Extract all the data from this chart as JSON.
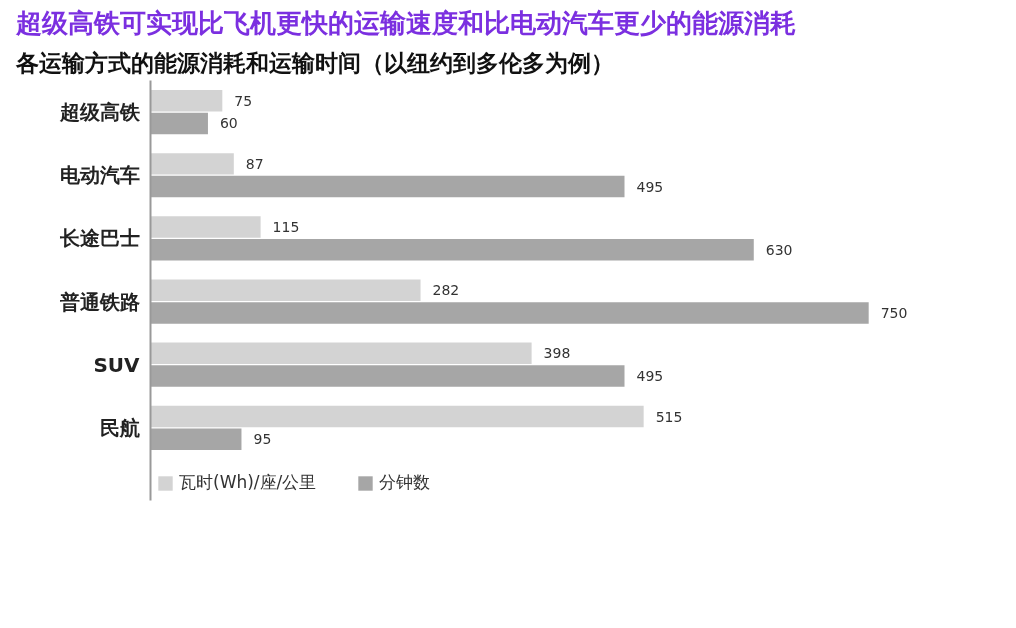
{
  "chart_data": {
    "type": "bar",
    "orientation": "horizontal",
    "title": "超级高铁可实现比飞机更快的运输速度和比电动汽车更少的能源消耗",
    "subtitle": "各运输方式的能源消耗和运输时间（以纽约到多伦多为例）",
    "categories": [
      "超级高铁",
      "电动汽车",
      "长途巴士",
      "普通铁路",
      "SUV",
      "民航"
    ],
    "series": [
      {
        "name": "瓦时(Wh)/座/公里",
        "color": "#d3d3d3",
        "values": [
          75,
          87,
          115,
          282,
          398,
          515
        ]
      },
      {
        "name": "分钟数",
        "color": "#a6a6a6",
        "values": [
          60,
          495,
          630,
          750,
          495,
          95
        ]
      }
    ],
    "data_labels": true,
    "legend": "bottom left"
  }
}
